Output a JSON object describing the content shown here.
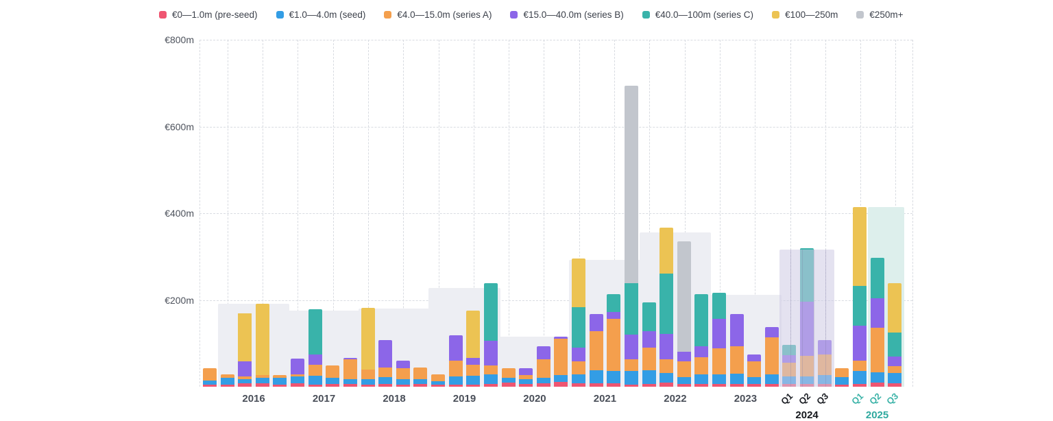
{
  "legend": {
    "items": [
      {
        "key": "preseed",
        "label": "€0—1.0m (pre-seed)",
        "color": "#ef5571"
      },
      {
        "key": "seed",
        "label": "€1.0—4.0m (seed)",
        "color": "#339de5"
      },
      {
        "key": "series_a",
        "label": "€4.0—15.0m (series A)",
        "color": "#f49f4d"
      },
      {
        "key": "series_b",
        "label": "€15.0—40.0m (series B)",
        "color": "#8c66e8"
      },
      {
        "key": "series_c",
        "label": "€40.0—100m (series C)",
        "color": "#39b3aa"
      },
      {
        "key": "y100_250",
        "label": "€100—250m",
        "color": "#ecc353"
      },
      {
        "key": "g250",
        "label": "€250m+",
        "color": "#c2c6cd"
      }
    ]
  },
  "chart_data": {
    "type": "bar",
    "subtype": "stacked-quarterly",
    "unit": "€m",
    "ylim": [
      0,
      800
    ],
    "grid": "dashed",
    "legend_position": "top",
    "y_axis": {
      "ticks": [
        {
          "label": "€800m",
          "value": 800
        },
        {
          "label": "€600m",
          "value": 600
        },
        {
          "label": "€400m",
          "value": 400
        },
        {
          "label": "€200m",
          "value": 200
        }
      ]
    },
    "categories": [
      "€0—1.0m (pre-seed)",
      "€1.0—4.0m (seed)",
      "€4.0—15.0m (series A)",
      "€15.0—40.0m (series B)",
      "€40.0—100m (series C)",
      "€100—250m",
      "€250m+"
    ],
    "colors": [
      "#ef5571",
      "#339de5",
      "#f49f4d",
      "#8c66e8",
      "#39b3aa",
      "#ecc353",
      "#c2c6cd"
    ],
    "bars": [
      {
        "year": "2015",
        "quarter": "Q4",
        "values": [
          5,
          10,
          28,
          0,
          0,
          0,
          0
        ]
      },
      {
        "year": "2016",
        "quarter": "Q1",
        "values": [
          5,
          16,
          8,
          0,
          0,
          0,
          0
        ]
      },
      {
        "year": "2016",
        "quarter": "Q2",
        "values": [
          8,
          10,
          5,
          35,
          0,
          112,
          0
        ]
      },
      {
        "year": "2016",
        "quarter": "Q3",
        "values": [
          8,
          13,
          6,
          0,
          0,
          165,
          0
        ]
      },
      {
        "year": "2016",
        "quarter": "Q4",
        "values": [
          5,
          15,
          7,
          0,
          0,
          0,
          0
        ]
      },
      {
        "year": "2017",
        "quarter": "Q1",
        "values": [
          8,
          16,
          5,
          36,
          0,
          0,
          0
        ]
      },
      {
        "year": "2017",
        "quarter": "Q2",
        "values": [
          5,
          20,
          25,
          25,
          104,
          0,
          0
        ]
      },
      {
        "year": "2017",
        "quarter": "Q3",
        "values": [
          6,
          14,
          29,
          0,
          0,
          0,
          0
        ]
      },
      {
        "year": "2017",
        "quarter": "Q4",
        "values": [
          6,
          12,
          45,
          4,
          0,
          0,
          0
        ]
      },
      {
        "year": "2018",
        "quarter": "Q1",
        "values": [
          5,
          13,
          21,
          0,
          0,
          143,
          0
        ]
      },
      {
        "year": "2018",
        "quarter": "Q2",
        "values": [
          6,
          16,
          22,
          64,
          0,
          0,
          0
        ]
      },
      {
        "year": "2018",
        "quarter": "Q3",
        "values": [
          5,
          12,
          25,
          18,
          0,
          0,
          0
        ]
      },
      {
        "year": "2018",
        "quarter": "Q4",
        "values": [
          6,
          12,
          26,
          0,
          0,
          0,
          0
        ]
      },
      {
        "year": "2019",
        "quarter": "Q1",
        "values": [
          5,
          8,
          16,
          0,
          0,
          0,
          0
        ]
      },
      {
        "year": "2019",
        "quarter": "Q2",
        "values": [
          5,
          18,
          37,
          59,
          0,
          0,
          0
        ]
      },
      {
        "year": "2019",
        "quarter": "Q3",
        "values": [
          5,
          20,
          25,
          16,
          0,
          110,
          0
        ]
      },
      {
        "year": "2019",
        "quarter": "Q4",
        "values": [
          6,
          22,
          21,
          57,
          132,
          0,
          0
        ]
      },
      {
        "year": "2020",
        "quarter": "Q1",
        "values": [
          10,
          11,
          21,
          0,
          0,
          0,
          0
        ]
      },
      {
        "year": "2020",
        "quarter": "Q2",
        "values": [
          6,
          11,
          10,
          16,
          0,
          0,
          0
        ]
      },
      {
        "year": "2020",
        "quarter": "Q3",
        "values": [
          8,
          13,
          43,
          29,
          0,
          0,
          0
        ]
      },
      {
        "year": "2020",
        "quarter": "Q4",
        "values": [
          11,
          16,
          84,
          5,
          0,
          0,
          0
        ]
      },
      {
        "year": "2021",
        "quarter": "Q1",
        "values": [
          8,
          21,
          29,
          32,
          94,
          111,
          0
        ]
      },
      {
        "year": "2021",
        "quarter": "Q2",
        "values": [
          8,
          30,
          90,
          40,
          0,
          0,
          0
        ]
      },
      {
        "year": "2021",
        "quarter": "Q3",
        "values": [
          8,
          29,
          119,
          16,
          41,
          0,
          0
        ]
      },
      {
        "year": "2021",
        "quarter": "Q4",
        "values": [
          5,
          32,
          27,
          56,
          119,
          0,
          455
        ]
      },
      {
        "year": "2022",
        "quarter": "Q1",
        "values": [
          6,
          32,
          52,
          38,
          67,
          0,
          0
        ]
      },
      {
        "year": "2022",
        "quarter": "Q2",
        "values": [
          10,
          21,
          32,
          59,
          139,
          106,
          0
        ]
      },
      {
        "year": "2022",
        "quarter": "Q3",
        "values": [
          6,
          16,
          36,
          22,
          0,
          0,
          255
        ]
      },
      {
        "year": "2022",
        "quarter": "Q4",
        "values": [
          6,
          22,
          40,
          26,
          120,
          0,
          0
        ]
      },
      {
        "year": "2023",
        "quarter": "Q1",
        "values": [
          6,
          22,
          60,
          68,
          60,
          0,
          0
        ]
      },
      {
        "year": "2023",
        "quarter": "Q2",
        "values": [
          6,
          24,
          64,
          73,
          0,
          0,
          0
        ]
      },
      {
        "year": "2023",
        "quarter": "Q3",
        "values": [
          6,
          16,
          36,
          17,
          0,
          0,
          0
        ]
      },
      {
        "year": "2023",
        "quarter": "Q4",
        "values": [
          6,
          22,
          86,
          24,
          0,
          0,
          0
        ]
      },
      {
        "year": "2024",
        "quarter": "Q1",
        "values": [
          6,
          18,
          32,
          16,
          25,
          0,
          0
        ]
      },
      {
        "year": "2024",
        "quarter": "Q2",
        "values": [
          7,
          16,
          48,
          125,
          123,
          0,
          0
        ]
      },
      {
        "year": "2024",
        "quarter": "Q3",
        "values": [
          6,
          21,
          48,
          33,
          0,
          0,
          0
        ]
      },
      {
        "year": "2024",
        "quarter": "Q4",
        "values": [
          4,
          18,
          21,
          0,
          0,
          0,
          0
        ]
      },
      {
        "year": "2025",
        "quarter": "Q1",
        "values": [
          6,
          30,
          24,
          81,
          91,
          182,
          0
        ]
      },
      {
        "year": "2025",
        "quarter": "Q2",
        "values": [
          10,
          24,
          102,
          68,
          93,
          0,
          0
        ]
      },
      {
        "year": "2025",
        "quarter": "Q3",
        "values": [
          8,
          24,
          16,
          21,
          56,
          114,
          0
        ]
      }
    ],
    "year_bands": [
      {
        "label": "2016",
        "from": 1,
        "to": 4,
        "height_m": 192,
        "style": "gray"
      },
      {
        "label": "2017",
        "from": 5,
        "to": 8,
        "height_m": 175,
        "style": "gray"
      },
      {
        "label": "2018",
        "from": 9,
        "to": 12,
        "height_m": 180,
        "style": "gray"
      },
      {
        "label": "2019",
        "from": 13,
        "to": 16,
        "height_m": 228,
        "style": "gray"
      },
      {
        "label": "2020",
        "from": 17,
        "to": 20,
        "height_m": 116,
        "style": "gray"
      },
      {
        "label": "2021",
        "from": 21,
        "to": 24,
        "height_m": 293,
        "style": "gray"
      },
      {
        "label": "2022",
        "from": 25,
        "to": 28,
        "height_m": 356,
        "style": "gray"
      },
      {
        "label": "2023",
        "from": 29,
        "to": 32,
        "height_m": 212,
        "style": "gray"
      },
      {
        "label": "2024",
        "from": 33,
        "to": 35,
        "height_m": 316,
        "style": "lavender-overlay"
      },
      {
        "label": "2025",
        "from": 38,
        "to": 39,
        "height_m": 415,
        "style": "teal"
      }
    ],
    "x_axis": {
      "year_labels": [
        {
          "text": "2016",
          "from": 1,
          "to": 4,
          "style": "normal",
          "row": 1
        },
        {
          "text": "2017",
          "from": 5,
          "to": 8,
          "style": "normal",
          "row": 1
        },
        {
          "text": "2018",
          "from": 9,
          "to": 12,
          "style": "normal",
          "row": 1
        },
        {
          "text": "2019",
          "from": 13,
          "to": 16,
          "style": "normal",
          "row": 1
        },
        {
          "text": "2020",
          "from": 17,
          "to": 20,
          "style": "normal",
          "row": 1
        },
        {
          "text": "2021",
          "from": 21,
          "to": 24,
          "style": "normal",
          "row": 1
        },
        {
          "text": "2022",
          "from": 25,
          "to": 28,
          "style": "normal",
          "row": 1
        },
        {
          "text": "2023",
          "from": 29,
          "to": 32,
          "style": "normal",
          "row": 1
        },
        {
          "text": "2024",
          "from": 33,
          "to": 35,
          "style": "bold-dark",
          "row": 2
        },
        {
          "text": "2025",
          "from": 37,
          "to": 39,
          "style": "bold-teal",
          "row": 2
        }
      ],
      "quarter_labels": [
        {
          "bar": 33,
          "text": "Q1",
          "color": "#1b1e24"
        },
        {
          "bar": 34,
          "text": "Q2",
          "color": "#1b1e24"
        },
        {
          "bar": 35,
          "text": "Q3",
          "color": "#1b1e24"
        },
        {
          "bar": 37,
          "text": "Q1",
          "color": "#3cb3a8"
        },
        {
          "bar": 38,
          "text": "Q2",
          "color": "#3cb3a8"
        },
        {
          "bar": 39,
          "text": "Q3",
          "color": "#3cb3a8"
        }
      ]
    }
  }
}
